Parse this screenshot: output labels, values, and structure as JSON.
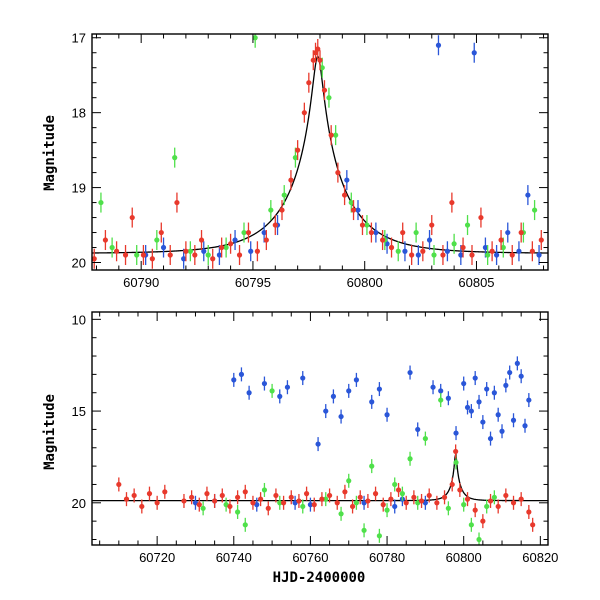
{
  "chart_data": [
    {
      "type": "scatter",
      "title": "",
      "xlabel": "",
      "ylabel": "Magnitude",
      "xlim": [
        60787.8,
        60808.2
      ],
      "ylim": [
        20.1,
        16.95
      ],
      "y_inverted": true,
      "x_ticks": [
        60790,
        60795,
        60800,
        60805
      ],
      "y_ticks": [
        17,
        18,
        19,
        20
      ],
      "x_minor_step": 1,
      "y_minor_step": 0.2,
      "grid": false,
      "legend": "none",
      "model_curve": {
        "color": "#000000",
        "baseline_mag": 19.88,
        "peak_mag": 17.25,
        "peak_time": 60797.9,
        "u0": 0.08,
        "tE": 2.6
      },
      "series": [
        {
          "color": "#e8392c",
          "points": [
            [
              60787.9,
              19.95
            ],
            [
              60788.4,
              19.7
            ],
            [
              60788.9,
              19.85
            ],
            [
              60789.3,
              19.9
            ],
            [
              60789.6,
              19.4
            ],
            [
              60790.1,
              19.9
            ],
            [
              60790.5,
              19.95
            ],
            [
              60790.9,
              19.6
            ],
            [
              60791.3,
              19.9
            ],
            [
              60791.6,
              19.2
            ],
            [
              60792.0,
              19.85
            ],
            [
              60792.4,
              19.9
            ],
            [
              60792.7,
              19.7
            ],
            [
              60793.2,
              19.95
            ],
            [
              60793.6,
              19.8
            ],
            [
              60794.0,
              19.75
            ],
            [
              60794.4,
              19.9
            ],
            [
              60794.8,
              19.6
            ],
            [
              60795.2,
              19.85
            ],
            [
              60795.6,
              19.7
            ],
            [
              60796.0,
              19.5
            ],
            [
              60796.3,
              19.3
            ],
            [
              60796.7,
              18.9
            ],
            [
              60797.0,
              18.5
            ],
            [
              60797.3,
              18.0
            ],
            [
              60797.5,
              17.6
            ],
            [
              60797.7,
              17.3
            ],
            [
              60797.8,
              17.2
            ],
            [
              60797.9,
              17.15
            ],
            [
              60798.0,
              17.3
            ],
            [
              60798.2,
              17.7
            ],
            [
              60798.5,
              18.3
            ],
            [
              60798.8,
              18.8
            ],
            [
              60799.1,
              19.1
            ],
            [
              60799.5,
              19.3
            ],
            [
              60799.9,
              19.5
            ],
            [
              60800.3,
              19.6
            ],
            [
              60800.8,
              19.7
            ],
            [
              60801.2,
              19.8
            ],
            [
              60801.7,
              19.6
            ],
            [
              60802.1,
              19.9
            ],
            [
              60802.6,
              19.85
            ],
            [
              60803.0,
              19.5
            ],
            [
              60803.5,
              19.9
            ],
            [
              60803.9,
              19.2
            ],
            [
              60804.4,
              19.8
            ],
            [
              60804.8,
              19.9
            ],
            [
              60805.2,
              19.4
            ],
            [
              60805.7,
              19.85
            ],
            [
              60806.1,
              19.7
            ],
            [
              60806.6,
              19.9
            ],
            [
              60807.0,
              19.6
            ],
            [
              60807.5,
              19.85
            ],
            [
              60807.9,
              19.7
            ]
          ]
        },
        {
          "color": "#2a56d8",
          "points": [
            [
              60790.2,
              19.9
            ],
            [
              60791.0,
              19.8
            ],
            [
              60791.9,
              19.95
            ],
            [
              60792.8,
              19.85
            ],
            [
              60793.5,
              19.9
            ],
            [
              60794.2,
              19.7
            ],
            [
              60794.9,
              19.85
            ],
            [
              60795.5,
              19.6
            ],
            [
              60796.1,
              19.5
            ],
            [
              60799.2,
              18.9
            ],
            [
              60799.7,
              19.3
            ],
            [
              60800.5,
              19.6
            ],
            [
              60801.0,
              19.75
            ],
            [
              60801.8,
              19.85
            ],
            [
              60802.4,
              19.9
            ],
            [
              60802.9,
              19.7
            ],
            [
              60803.3,
              17.1
            ],
            [
              60803.7,
              19.85
            ],
            [
              60804.3,
              19.9
            ],
            [
              60804.9,
              17.2
            ],
            [
              60805.4,
              19.8
            ],
            [
              60805.9,
              19.9
            ],
            [
              60806.4,
              19.6
            ],
            [
              60806.9,
              19.85
            ],
            [
              60807.3,
              19.1
            ],
            [
              60807.8,
              19.9
            ]
          ]
        },
        {
          "color": "#4fe04a",
          "points": [
            [
              60788.2,
              19.2
            ],
            [
              60788.7,
              19.8
            ],
            [
              60789.8,
              19.9
            ],
            [
              60790.7,
              19.7
            ],
            [
              60791.5,
              18.6
            ],
            [
              60792.2,
              19.85
            ],
            [
              60793.0,
              19.9
            ],
            [
              60793.8,
              19.8
            ],
            [
              60794.6,
              19.6
            ],
            [
              60795.1,
              17.0
            ],
            [
              60795.8,
              19.3
            ],
            [
              60796.4,
              19.1
            ],
            [
              60796.9,
              18.6
            ],
            [
              60798.1,
              17.4
            ],
            [
              60798.4,
              17.8
            ],
            [
              60798.7,
              18.3
            ],
            [
              60799.4,
              19.2
            ],
            [
              60800.1,
              19.5
            ],
            [
              60800.9,
              19.7
            ],
            [
              60801.5,
              19.85
            ],
            [
              60802.3,
              19.6
            ],
            [
              60803.1,
              19.9
            ],
            [
              60804.0,
              19.75
            ],
            [
              60804.6,
              19.5
            ],
            [
              60805.5,
              19.9
            ],
            [
              60806.2,
              19.8
            ],
            [
              60807.1,
              19.6
            ],
            [
              60807.6,
              19.3
            ]
          ]
        }
      ]
    },
    {
      "type": "scatter",
      "title": "",
      "xlabel": "HJD-2400000",
      "ylabel": "Magnitude",
      "xlim": [
        60703,
        60822
      ],
      "ylim": [
        22.3,
        9.6
      ],
      "y_inverted": true,
      "x_ticks": [
        60720,
        60740,
        60760,
        60780,
        60800,
        60820
      ],
      "y_ticks": [
        10,
        15,
        20
      ],
      "x_minor_step": 5,
      "y_minor_step": 1,
      "grid": false,
      "legend": "none",
      "model_curve": {
        "color": "#000000",
        "baseline_mag": 19.88,
        "peak_mag": 17.25,
        "peak_time": 60797.9,
        "u0": 0.08,
        "tE": 2.6
      },
      "series": [
        {
          "color": "#e8392c",
          "points": [
            [
              60710,
              19.0
            ],
            [
              60712,
              19.8
            ],
            [
              60714,
              19.6
            ],
            [
              60716,
              20.2
            ],
            [
              60718,
              19.5
            ],
            [
              60720,
              20.0
            ],
            [
              60722,
              19.4
            ],
            [
              60727,
              19.9
            ],
            [
              60729,
              19.7
            ],
            [
              60731,
              20.1
            ],
            [
              60733,
              19.5
            ],
            [
              60735,
              19.9
            ],
            [
              60737,
              19.6
            ],
            [
              60739,
              20.2
            ],
            [
              60741,
              19.7
            ],
            [
              60743,
              19.4
            ],
            [
              60745,
              20.0
            ],
            [
              60747,
              19.8
            ],
            [
              60749,
              20.3
            ],
            [
              60751,
              19.6
            ],
            [
              60753,
              20.0
            ],
            [
              60755,
              19.7
            ],
            [
              60757,
              19.9
            ],
            [
              60759,
              19.5
            ],
            [
              60761,
              20.1
            ],
            [
              60763,
              19.8
            ],
            [
              60765,
              19.6
            ],
            [
              60767,
              20.0
            ],
            [
              60769,
              19.4
            ],
            [
              60771,
              20.2
            ],
            [
              60773,
              19.7
            ],
            [
              60775,
              19.9
            ],
            [
              60777,
              19.5
            ],
            [
              60779,
              20.1
            ],
            [
              60781,
              19.8
            ],
            [
              60783,
              19.3
            ],
            [
              60785,
              20.0
            ],
            [
              60787,
              19.7
            ],
            [
              60789,
              19.9
            ],
            [
              60791,
              19.6
            ],
            [
              60793,
              20.0
            ],
            [
              60795,
              19.7
            ],
            [
              60797,
              19.0
            ],
            [
              60797.9,
              17.2
            ],
            [
              60799,
              19.3
            ],
            [
              60801,
              19.8
            ],
            [
              60803,
              20.4
            ],
            [
              60805,
              21.0
            ],
            [
              60807,
              19.9
            ],
            [
              60809,
              20.2
            ],
            [
              60811,
              19.6
            ],
            [
              60813,
              20.0
            ],
            [
              60815,
              19.8
            ],
            [
              60817,
              20.5
            ],
            [
              60818,
              21.2
            ]
          ]
        },
        {
          "color": "#2a56d8",
          "points": [
            [
              60730,
              20.0
            ],
            [
              60735,
              19.9
            ],
            [
              60740,
              13.3
            ],
            [
              60742,
              13.0
            ],
            [
              60744,
              14.0
            ],
            [
              60746,
              20.1
            ],
            [
              60748,
              13.5
            ],
            [
              60752,
              14.2
            ],
            [
              60754,
              13.7
            ],
            [
              60756,
              20.0
            ],
            [
              60758,
              13.2
            ],
            [
              60760,
              20.1
            ],
            [
              60762,
              16.8
            ],
            [
              60764,
              15.0
            ],
            [
              60766,
              14.2
            ],
            [
              60768,
              15.3
            ],
            [
              60770,
              13.9
            ],
            [
              60772,
              13.3
            ],
            [
              60774,
              20.0
            ],
            [
              60776,
              14.5
            ],
            [
              60778,
              13.8
            ],
            [
              60780,
              15.2
            ],
            [
              60782,
              20.2
            ],
            [
              60784,
              19.8
            ],
            [
              60786,
              12.9
            ],
            [
              60788,
              16.0
            ],
            [
              60790,
              20.0
            ],
            [
              60792,
              13.7
            ],
            [
              60794,
              13.9
            ],
            [
              60796,
              14.3
            ],
            [
              60798,
              16.2
            ],
            [
              60800,
              13.5
            ],
            [
              60801,
              14.8
            ],
            [
              60802,
              15.0
            ],
            [
              60803,
              13.2
            ],
            [
              60804,
              14.5
            ],
            [
              60805,
              15.6
            ],
            [
              60806,
              13.8
            ],
            [
              60807,
              16.5
            ],
            [
              60808,
              14.0
            ],
            [
              60809,
              15.2
            ],
            [
              60810,
              16.1
            ],
            [
              60811,
              13.6
            ],
            [
              60812,
              12.9
            ],
            [
              60813,
              15.5
            ],
            [
              60814,
              12.4
            ],
            [
              60815,
              13.1
            ],
            [
              60816,
              15.8
            ],
            [
              60817,
              14.4
            ]
          ]
        },
        {
          "color": "#4fe04a",
          "points": [
            [
              60732,
              20.3
            ],
            [
              60738,
              20.1
            ],
            [
              60741,
              20.5
            ],
            [
              60743,
              21.2
            ],
            [
              60748,
              19.3
            ],
            [
              60750,
              13.9
            ],
            [
              60752,
              20.0
            ],
            [
              60758,
              20.2
            ],
            [
              60764,
              19.8
            ],
            [
              60768,
              20.6
            ],
            [
              60770,
              18.8
            ],
            [
              60772,
              20.0
            ],
            [
              60774,
              21.5
            ],
            [
              60776,
              18.0
            ],
            [
              60778,
              21.8
            ],
            [
              60780,
              20.4
            ],
            [
              60782,
              19.0
            ],
            [
              60784,
              19.5
            ],
            [
              60786,
              17.6
            ],
            [
              60788,
              20.0
            ],
            [
              60790,
              16.5
            ],
            [
              60794,
              14.4
            ],
            [
              60796,
              20.3
            ],
            [
              60798,
              17.8
            ],
            [
              60800,
              20.1
            ],
            [
              60802,
              21.2
            ],
            [
              60804,
              22.0
            ],
            [
              60806,
              20.2
            ],
            [
              60808,
              19.7
            ]
          ]
        }
      ]
    }
  ]
}
